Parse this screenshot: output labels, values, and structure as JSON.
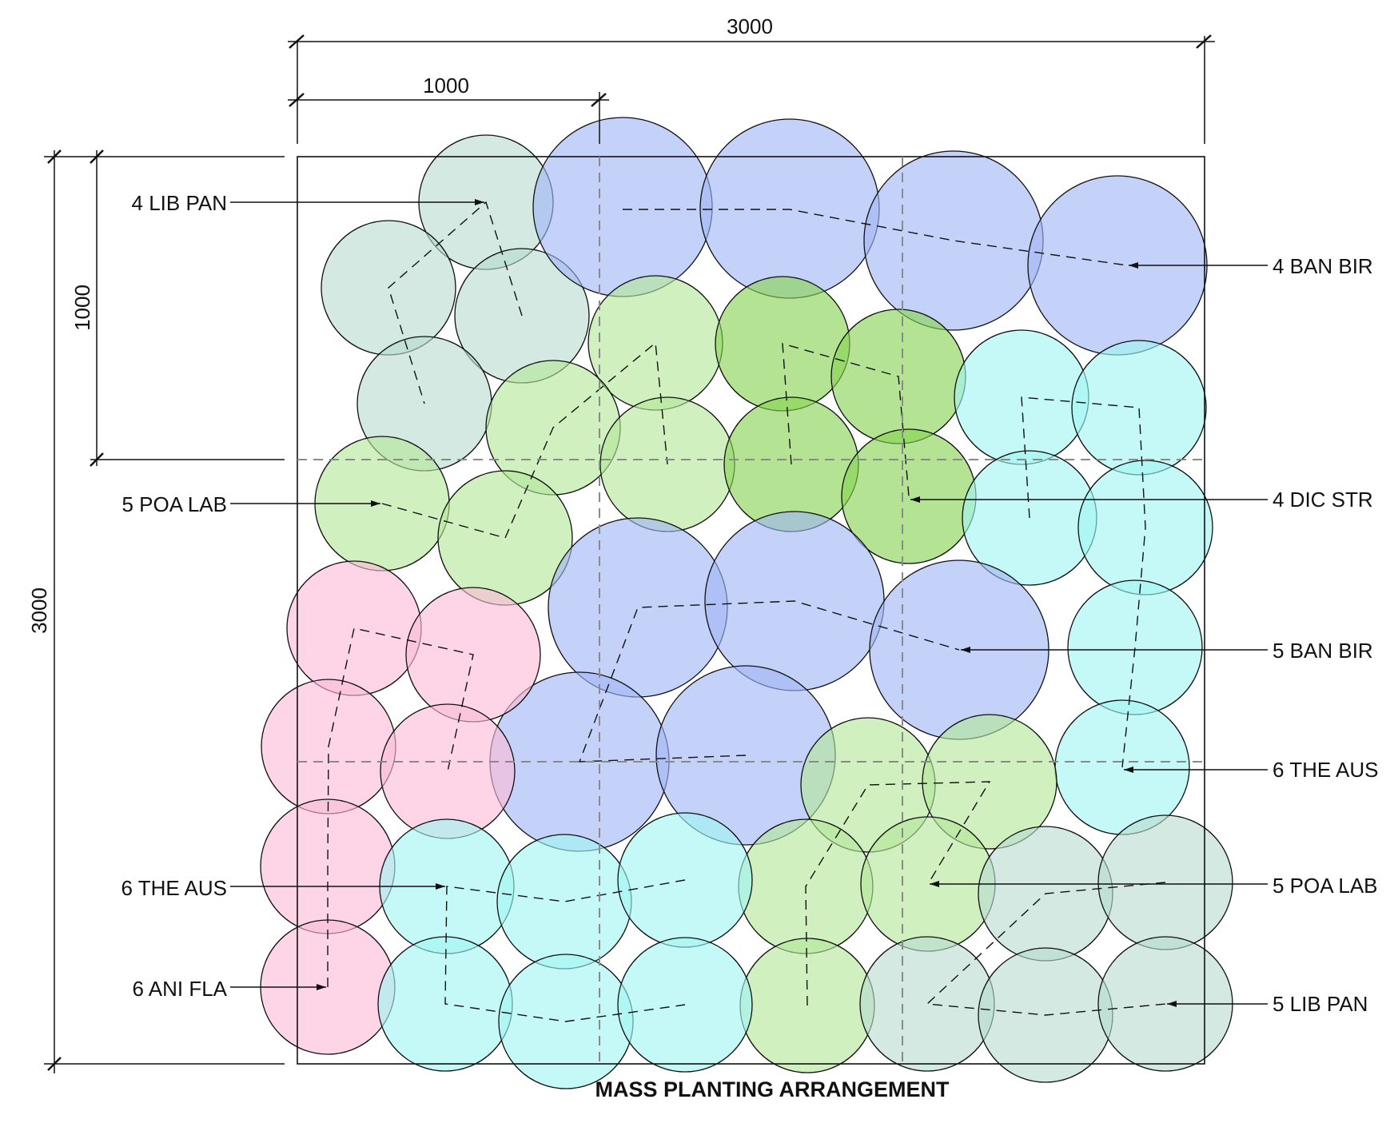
{
  "title": "MASS PLANTING ARRANGEMENT",
  "dimensions": {
    "overall_width": "3000",
    "overall_height": "3000",
    "module_width": "1000",
    "module_height": "1000"
  },
  "labels": {
    "left": [
      "4 LIB PAN",
      "5 POA LAB",
      "6 THE AUS",
      "6 ANI FLA"
    ],
    "right": [
      "4 BAN BIR",
      "4 DIC STR",
      "5 BAN BIR",
      "6 THE AUS",
      "5 POA LAB",
      "5 LIB PAN"
    ]
  },
  "colors": {
    "lib_pan": "#b8dccf",
    "ban_bir": "#9fb4f4",
    "poa_lab": "#b3e69a",
    "dic_str": "#86d450",
    "the_aus": "#9ff6f4",
    "ani_fla": "#fbbcd9",
    "outline": "#111111",
    "grid": "#8a8a8a"
  },
  "groups": [
    {
      "name": "lib-pan-top",
      "code": "LIB PAN",
      "count": 4,
      "color": "lib_pan"
    },
    {
      "name": "ban-bir-top",
      "code": "BAN BIR",
      "count": 4,
      "color": "ban_bir"
    },
    {
      "name": "poa-lab-top",
      "code": "POA LAB",
      "count": 5,
      "color": "poa_lab"
    },
    {
      "name": "dic-str",
      "code": "DIC STR",
      "count": 4,
      "color": "dic_str"
    },
    {
      "name": "the-aus-right",
      "code": "THE AUS",
      "count": 6,
      "color": "the_aus"
    },
    {
      "name": "ban-bir-mid",
      "code": "BAN BIR",
      "count": 5,
      "color": "ban_bir"
    },
    {
      "name": "ani-fla",
      "code": "ANI FLA",
      "count": 6,
      "color": "ani_fla"
    },
    {
      "name": "the-aus-bottom",
      "code": "THE AUS",
      "count": 6,
      "color": "the_aus"
    },
    {
      "name": "poa-lab-bottom",
      "code": "POA LAB",
      "count": 5,
      "color": "poa_lab"
    },
    {
      "name": "lib-pan-bottom",
      "code": "LIB PAN",
      "count": 5,
      "color": "lib_pan"
    }
  ]
}
